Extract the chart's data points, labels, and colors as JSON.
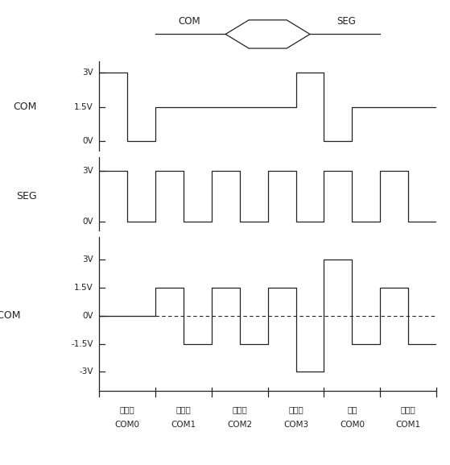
{
  "fig_width": 5.59,
  "fig_height": 5.77,
  "dpi": 100,
  "background_color": "#ffffff",
  "line_color": "#222222",
  "title_com": "COM",
  "title_seg": "SEG",
  "title_seg_com": "SEG-COM",
  "com_label_yticks": [
    "3V",
    "1.5V",
    "0V"
  ],
  "com_label_yvals": [
    3,
    1.5,
    0
  ],
  "seg_label_yticks": [
    "3V",
    "0V"
  ],
  "seg_label_yvals": [
    3,
    0
  ],
  "segcom_label_yticks": [
    "3V",
    "1.5V",
    "0V",
    "-1.5V",
    "-3V"
  ],
  "segcom_label_yvals": [
    3,
    1.5,
    0,
    -1.5,
    -3
  ],
  "bottom_labels_top": [
    "不显示",
    "不显示",
    "不显示",
    "不显示",
    "显示",
    "不显示"
  ],
  "bottom_labels_bot": [
    "COM0",
    "COM1",
    "COM2",
    "COM3",
    "COM0",
    "COM1"
  ],
  "com_x": [
    0,
    1,
    1,
    2,
    2,
    7,
    7,
    8,
    8,
    9,
    9,
    12
  ],
  "com_y": [
    3,
    3,
    0,
    0,
    1.5,
    1.5,
    3,
    3,
    0,
    0,
    1.5,
    1.5
  ],
  "seg_x": [
    0,
    1,
    1,
    2,
    2,
    3,
    3,
    4,
    4,
    5,
    5,
    6,
    6,
    7,
    7,
    8,
    8,
    9,
    9,
    10,
    10,
    11,
    11,
    12
  ],
  "seg_y": [
    3,
    3,
    0,
    0,
    3,
    3,
    0,
    0,
    3,
    3,
    0,
    0,
    3,
    3,
    0,
    0,
    3,
    3,
    0,
    0,
    3,
    3,
    0,
    0
  ],
  "segcom_levels": [
    0,
    0,
    1.5,
    -1.5,
    1.5,
    -1.5,
    1.5,
    -3,
    3,
    -1.5,
    1.5,
    -1.5
  ],
  "period_x_starts": [
    0,
    2,
    4,
    6,
    8,
    10
  ],
  "total_t": 12
}
